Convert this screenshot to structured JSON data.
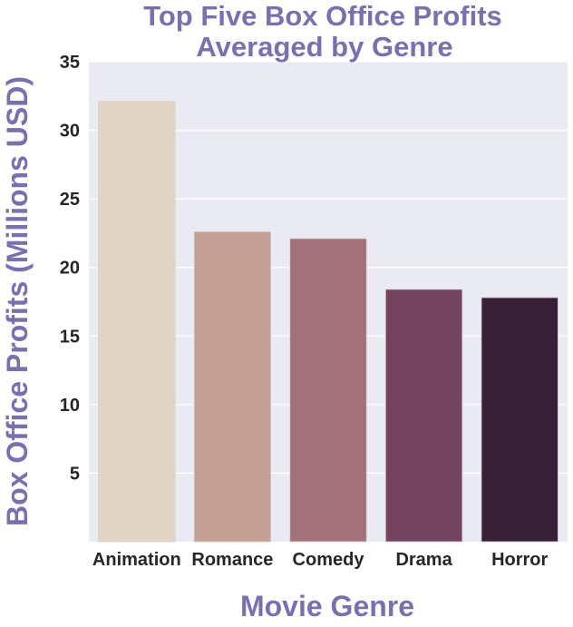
{
  "chart_data": {
    "type": "bar",
    "title_lines": [
      "Top Five Box Office Profits",
      "Averaged by Genre"
    ],
    "xlabel": "Movie Genre",
    "ylabel": "Box Office Profits (Millions USD)",
    "categories": [
      "Animation",
      "Romance",
      "Comedy",
      "Drama",
      "Horror"
    ],
    "values": [
      32.1,
      22.6,
      22.1,
      18.4,
      17.8
    ],
    "colors": [
      "#e3d5c5",
      "#c5a195",
      "#a3717b",
      "#734360",
      "#372036"
    ],
    "ylim": [
      0,
      35
    ],
    "yticks": [
      5,
      10,
      15,
      20,
      25,
      30,
      35
    ],
    "grid": true,
    "plot_background": "#eaeaf2",
    "accent_color": "#7b6fb1"
  }
}
